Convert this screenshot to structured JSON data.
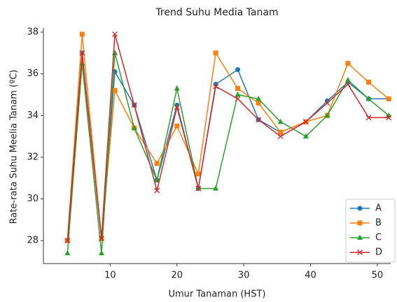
{
  "chart_data": {
    "type": "line",
    "title": "Trend Suhu Media Tanam",
    "x_label": "Umur Tanaman (HST)",
    "y_label": "Rate-rata Suhu Meelia Tanam (ºC)",
    "x": [
      3.6,
      5.8,
      8.7,
      10.7,
      13.6,
      17,
      20,
      23.2,
      25.8,
      29.1,
      32.2,
      35.5,
      39.3,
      42.5,
      45.6,
      48.7,
      51.7
    ],
    "series": [
      {
        "name": "A",
        "color": "#1f77b4",
        "marker": "circle",
        "values": [
          28,
          37.0,
          28.1,
          36.1,
          34.5,
          30.9,
          34.5,
          30.5,
          35.5,
          36.2,
          33.8,
          33.2,
          33.7,
          34.7,
          35.6,
          34.8,
          34.8
        ]
      },
      {
        "name": "B",
        "color": "#ff7f0e",
        "marker": "square",
        "values": [
          28,
          37.9,
          28.1,
          35.2,
          33.4,
          31.7,
          33.5,
          31.2,
          37.0,
          35.3,
          34.6,
          33.2,
          33.7,
          34.0,
          36.5,
          35.6,
          34.8
        ]
      },
      {
        "name": "C",
        "color": "#2ca02c",
        "marker": "triangle",
        "values": [
          27.4,
          36.5,
          27.4,
          37.0,
          33.4,
          30.9,
          35.3,
          30.5,
          30.5,
          35.0,
          34.8,
          33.7,
          33.0,
          34.0,
          35.7,
          34.8,
          34.0
        ]
      },
      {
        "name": "D",
        "color": "#d62728",
        "marker": "x",
        "values": [
          28,
          37.0,
          28.1,
          37.9,
          34.5,
          30.4,
          34.4,
          30.5,
          35.4,
          34.8,
          33.8,
          33.0,
          33.7,
          34.6,
          35.5,
          33.9,
          33.9
        ]
      }
    ],
    "xlim": [
      0,
      52
    ],
    "ylim": [
      26.9,
      38.2
    ],
    "xticks": [
      10,
      20,
      30,
      40,
      50
    ],
    "yticks": [
      28,
      30,
      32,
      34,
      36,
      38
    ],
    "legend": "lower right",
    "grid": false
  }
}
